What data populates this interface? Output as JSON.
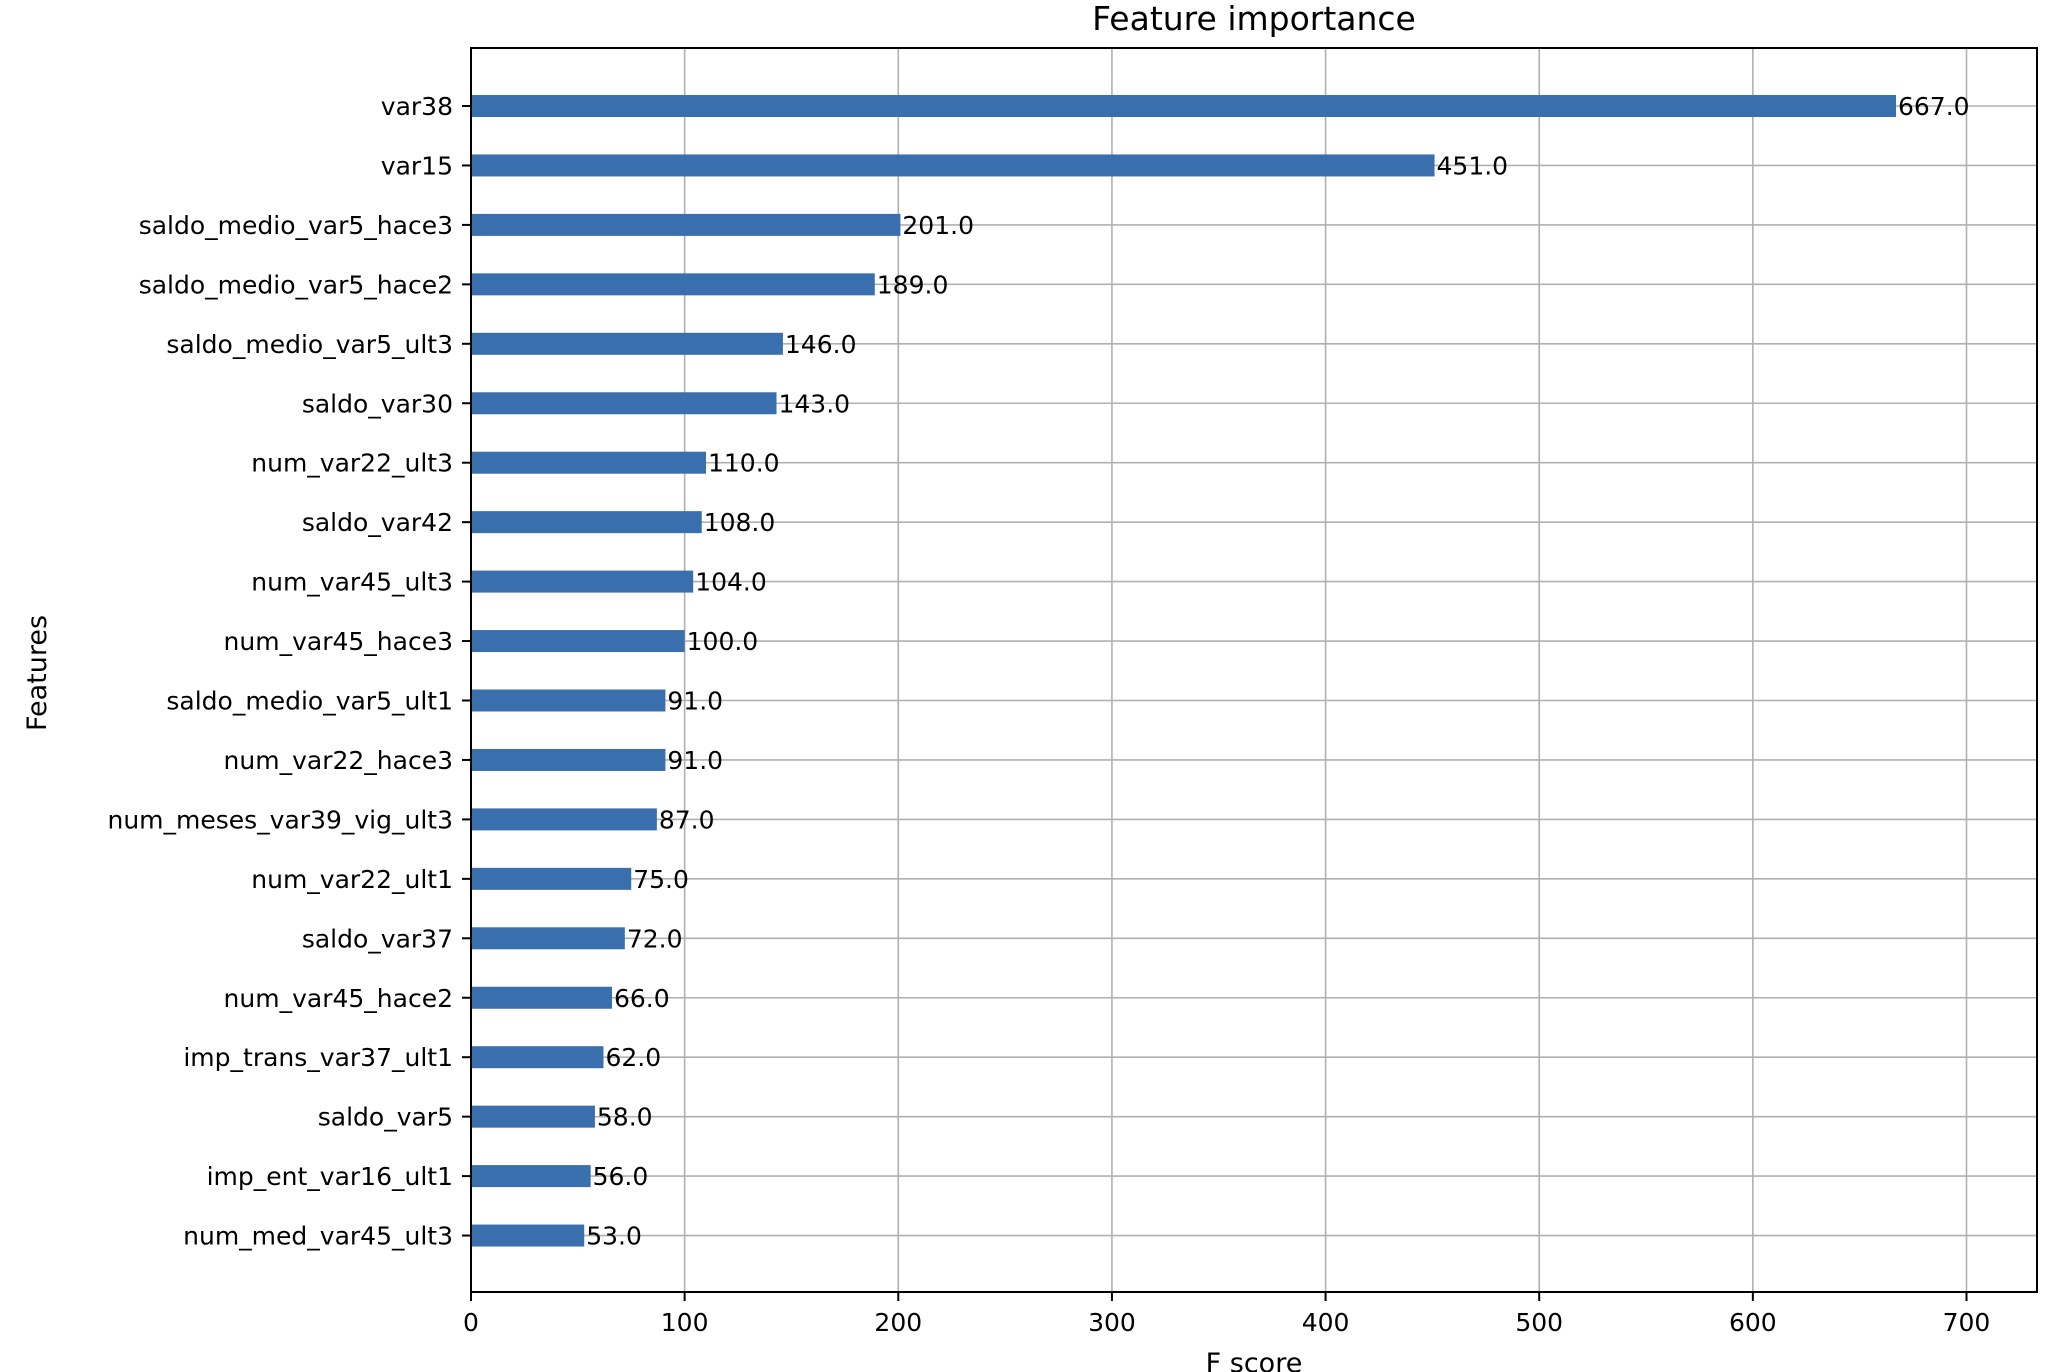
{
  "chart_data": {
    "type": "bar",
    "orientation": "horizontal",
    "title": "Feature importance",
    "xlabel": "F score",
    "ylabel": "Features",
    "xlim": [
      0,
      733
    ],
    "xticks": [
      0,
      100,
      200,
      300,
      400,
      500,
      600,
      700
    ],
    "grid": true,
    "bar_color": "#3a6fad",
    "categories": [
      "var38",
      "var15",
      "saldo_medio_var5_hace3",
      "saldo_medio_var5_hace2",
      "saldo_medio_var5_ult3",
      "saldo_var30",
      "num_var22_ult3",
      "saldo_var42",
      "num_var45_ult3",
      "num_var45_hace3",
      "saldo_medio_var5_ult1",
      "num_var22_hace3",
      "num_meses_var39_vig_ult3",
      "num_var22_ult1",
      "saldo_var37",
      "num_var45_hace2",
      "imp_trans_var37_ult1",
      "saldo_var5",
      "imp_ent_var16_ult1",
      "num_med_var45_ult3"
    ],
    "values": [
      667.0,
      451.0,
      201.0,
      189.0,
      146.0,
      143.0,
      110.0,
      108.0,
      104.0,
      100.0,
      91.0,
      91.0,
      87.0,
      75.0,
      72.0,
      66.0,
      62.0,
      58.0,
      56.0,
      53.0
    ],
    "value_labels": [
      "667.0",
      "451.0",
      "201.0",
      "189.0",
      "146.0",
      "143.0",
      "110.0",
      "108.0",
      "104.0",
      "100.0",
      "91.0",
      "91.0",
      "87.0",
      "75.0",
      "72.0",
      "66.0",
      "62.0",
      "58.0",
      "56.0",
      "53.0"
    ]
  }
}
